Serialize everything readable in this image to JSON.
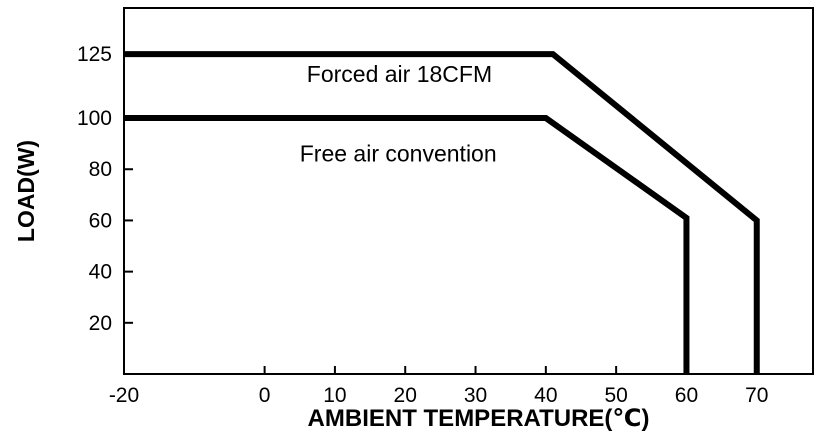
{
  "chart_data": {
    "type": "line",
    "title": "",
    "xlabel": "AMBIENT TEMPERATURE(℃)",
    "ylabel": "LOAD(W)",
    "xlim": [
      -20,
      78
    ],
    "ylim": [
      0,
      143
    ],
    "x_ticks": [
      -20,
      0,
      10,
      20,
      30,
      40,
      50,
      60,
      70
    ],
    "x_tick_labels": [
      "-20",
      "0",
      "10",
      "20",
      "30",
      "40",
      "50",
      "60",
      "70"
    ],
    "y_ticks": [
      20,
      40,
      60,
      80,
      100,
      125
    ],
    "y_tick_labels": [
      "20",
      "40",
      "60",
      "80",
      "100",
      "125"
    ],
    "grid": false,
    "series": [
      {
        "name": "Forced air 18CFM",
        "x": [
          -20,
          41,
          70,
          70
        ],
        "y": [
          125,
          125,
          60,
          0
        ]
      },
      {
        "name": "Free air convention",
        "x": [
          -20,
          40,
          60,
          60
        ],
        "y": [
          100,
          100,
          61,
          0
        ]
      }
    ],
    "annotations": [
      {
        "text": "Forced air 18CFM",
        "x": 6,
        "y": 114
      },
      {
        "text": "Free air convention",
        "x": 5,
        "y": 83
      }
    ],
    "colors": {
      "axis": "#000000",
      "line": "#000000",
      "background": "#ffffff"
    }
  }
}
